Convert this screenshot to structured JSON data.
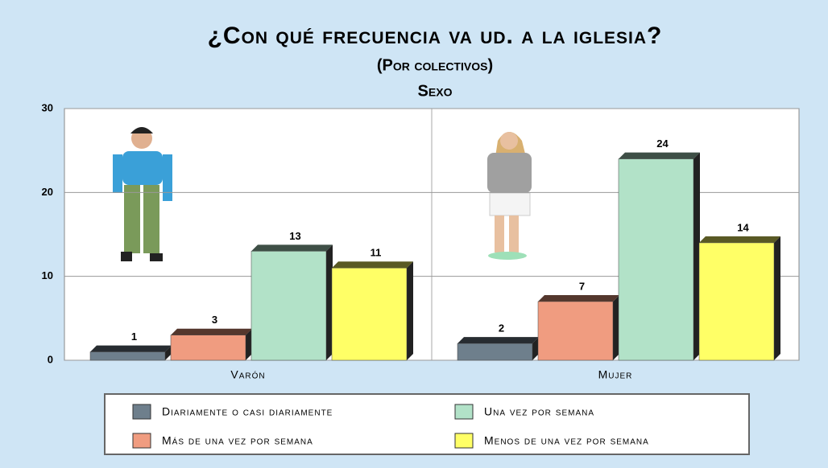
{
  "chart_data": {
    "type": "bar",
    "title": "¿Con qué frecuencia va ud. a la iglesia?",
    "subtitle": "(Por colectivos)",
    "group_title": "Sexo",
    "categories": [
      "Varón",
      "Mujer"
    ],
    "series": [
      {
        "name": "Diariamente o casi diariamente",
        "color": "#6e7f8c",
        "values": [
          1,
          2
        ]
      },
      {
        "name": "Más de una vez por semana",
        "color": "#f09c80",
        "values": [
          3,
          7
        ]
      },
      {
        "name": "Una vez por semana",
        "color": "#b2e2c8",
        "values": [
          13,
          24
        ]
      },
      {
        "name": "Menos de una vez por semana",
        "color": "#ffff66",
        "values": [
          11,
          14
        ]
      }
    ],
    "ylim": [
      0,
      30
    ],
    "yticks": [
      0,
      10,
      20,
      30
    ],
    "grid": true
  }
}
